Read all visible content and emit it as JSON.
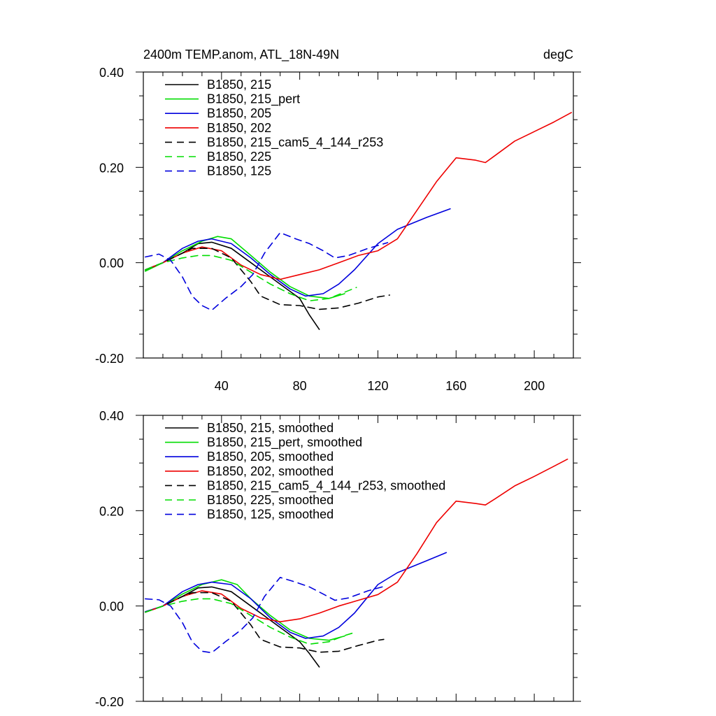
{
  "chart_data": [
    {
      "type": "line",
      "title": "2400m TEMP.anom, ATL_18N-49N",
      "units": "degC",
      "xlim": [
        0,
        220
      ],
      "ylim": [
        -0.2,
        0.4
      ],
      "xticks": [
        40,
        80,
        120,
        160,
        200
      ],
      "xtick_labels": [
        "40",
        "80",
        "120",
        "160",
        "200"
      ],
      "yticks": [
        -0.2,
        0.0,
        0.2,
        0.4
      ],
      "ytick_labels": [
        "-0.20",
        "0.00",
        "0.20",
        "0.40"
      ],
      "legend_placement": "top-left",
      "series": [
        {
          "name": "B1850, 215",
          "color": "#000000",
          "dash": "solid",
          "x": [
            1,
            10,
            20,
            28,
            35,
            45,
            55,
            65,
            75,
            80,
            85,
            90
          ],
          "y": [
            -0.015,
            0.0,
            0.02,
            0.04,
            0.043,
            0.03,
            0.0,
            -0.03,
            -0.06,
            -0.075,
            -0.11,
            -0.14
          ]
        },
        {
          "name": "B1850, 215_pert",
          "color": "#00dd00",
          "dash": "solid",
          "x": [
            1,
            10,
            20,
            30,
            38,
            45,
            55,
            65,
            75,
            85,
            95,
            103
          ],
          "y": [
            -0.018,
            0.0,
            0.025,
            0.045,
            0.055,
            0.05,
            0.015,
            -0.02,
            -0.05,
            -0.07,
            -0.075,
            -0.065
          ]
        },
        {
          "name": "B1850, 205",
          "color": "#0000dd",
          "dash": "solid",
          "x": [
            1,
            10,
            20,
            28,
            35,
            45,
            55,
            65,
            75,
            83,
            92,
            100,
            108,
            120,
            130,
            145,
            157
          ],
          "y": [
            -0.015,
            0.0,
            0.03,
            0.045,
            0.05,
            0.04,
            0.01,
            -0.025,
            -0.055,
            -0.07,
            -0.065,
            -0.045,
            -0.015,
            0.04,
            0.07,
            0.095,
            0.113
          ]
        },
        {
          "name": "B1850, 202",
          "color": "#ee0000",
          "dash": "solid",
          "x": [
            1,
            10,
            20,
            30,
            40,
            50,
            60,
            70,
            80,
            90,
            100,
            110,
            120,
            130,
            140,
            150,
            160,
            170,
            175,
            180,
            190,
            200,
            210,
            219
          ],
          "y": [
            -0.015,
            0.0,
            0.02,
            0.033,
            0.025,
            -0.005,
            -0.025,
            -0.035,
            -0.025,
            -0.015,
            0.0,
            0.015,
            0.025,
            0.05,
            0.11,
            0.17,
            0.22,
            0.215,
            0.21,
            0.225,
            0.255,
            0.275,
            0.295,
            0.315
          ]
        },
        {
          "name": "B1850, 215_cam5_4_144_r253",
          "color": "#000000",
          "dash": "dashed",
          "x": [
            1,
            10,
            20,
            25,
            30,
            35,
            45,
            55,
            60,
            70,
            80,
            90,
            100,
            110,
            120,
            126
          ],
          "y": [
            -0.015,
            0.0,
            0.02,
            0.03,
            0.03,
            0.03,
            0.01,
            -0.04,
            -0.07,
            -0.088,
            -0.09,
            -0.098,
            -0.095,
            -0.085,
            -0.072,
            -0.068
          ]
        },
        {
          "name": "B1850, 225",
          "color": "#00dd00",
          "dash": "dashed",
          "x": [
            1,
            10,
            20,
            28,
            35,
            45,
            55,
            65,
            75,
            85,
            95,
            103,
            109
          ],
          "y": [
            -0.015,
            0.0,
            0.01,
            0.015,
            0.015,
            0.005,
            -0.02,
            -0.045,
            -0.065,
            -0.08,
            -0.075,
            -0.062,
            -0.052
          ]
        },
        {
          "name": "B1850, 125",
          "color": "#0000dd",
          "dash": "dashed",
          "x": [
            1,
            8,
            14,
            20,
            25,
            30,
            35,
            42,
            50,
            56,
            62,
            70,
            78,
            85,
            92,
            98,
            105,
            115,
            125
          ],
          "y": [
            0.012,
            0.018,
            0.005,
            -0.03,
            -0.07,
            -0.09,
            -0.1,
            -0.075,
            -0.05,
            -0.025,
            0.02,
            0.063,
            0.05,
            0.04,
            0.025,
            0.01,
            0.015,
            0.03,
            0.042
          ]
        }
      ]
    },
    {
      "type": "line",
      "title": "",
      "units": "",
      "xlim": [
        0,
        220
      ],
      "ylim": [
        -0.2,
        0.4
      ],
      "xticks": [
        40,
        80,
        120,
        160,
        200
      ],
      "xtick_labels": [
        "",
        "",
        "",
        "",
        ""
      ],
      "yticks": [
        -0.2,
        0.0,
        0.2,
        0.4
      ],
      "ytick_labels": [
        "-0.20",
        "0.00",
        "0.20",
        "0.40"
      ],
      "legend_placement": "top-left",
      "series": [
        {
          "name": "B1850, 215, smoothed",
          "color": "#000000",
          "dash": "solid",
          "x": [
            1,
            10,
            20,
            28,
            35,
            45,
            55,
            65,
            75,
            80,
            85,
            90
          ],
          "y": [
            -0.013,
            0.0,
            0.02,
            0.038,
            0.04,
            0.03,
            0.0,
            -0.03,
            -0.06,
            -0.075,
            -0.1,
            -0.128
          ]
        },
        {
          "name": "B1850, 215_pert, smoothed",
          "color": "#00dd00",
          "dash": "solid",
          "x": [
            1,
            10,
            20,
            30,
            40,
            48,
            55,
            65,
            75,
            85,
            95,
            103
          ],
          "y": [
            -0.013,
            0.0,
            0.025,
            0.045,
            0.055,
            0.045,
            0.015,
            -0.02,
            -0.05,
            -0.068,
            -0.072,
            -0.063
          ]
        },
        {
          "name": "B1850, 205, smoothed",
          "color": "#0000dd",
          "dash": "solid",
          "x": [
            1,
            10,
            20,
            28,
            35,
            45,
            55,
            65,
            75,
            83,
            92,
            100,
            108,
            120,
            130,
            145,
            155
          ],
          "y": [
            -0.012,
            0.0,
            0.03,
            0.045,
            0.05,
            0.045,
            0.015,
            -0.025,
            -0.055,
            -0.068,
            -0.063,
            -0.045,
            -0.015,
            0.045,
            0.07,
            0.095,
            0.112
          ]
        },
        {
          "name": "B1850, 202, smoothed",
          "color": "#ee0000",
          "dash": "solid",
          "x": [
            1,
            10,
            20,
            30,
            40,
            50,
            60,
            70,
            80,
            90,
            100,
            110,
            120,
            130,
            140,
            150,
            160,
            170,
            175,
            180,
            190,
            200,
            210,
            217
          ],
          "y": [
            -0.013,
            0.0,
            0.02,
            0.032,
            0.025,
            -0.005,
            -0.025,
            -0.033,
            -0.027,
            -0.015,
            0.0,
            0.012,
            0.024,
            0.05,
            0.11,
            0.175,
            0.22,
            0.215,
            0.212,
            0.225,
            0.252,
            0.272,
            0.293,
            0.308
          ]
        },
        {
          "name": "B1850, 215_cam5_4_144_r253, smoothed",
          "color": "#000000",
          "dash": "dashed",
          "x": [
            1,
            10,
            20,
            25,
            30,
            35,
            45,
            55,
            60,
            70,
            80,
            90,
            100,
            110,
            120,
            123
          ],
          "y": [
            -0.013,
            0.0,
            0.02,
            0.028,
            0.028,
            0.028,
            0.01,
            -0.04,
            -0.07,
            -0.086,
            -0.088,
            -0.097,
            -0.095,
            -0.083,
            -0.072,
            -0.07
          ]
        },
        {
          "name": "B1850, 225, smoothed",
          "color": "#00dd00",
          "dash": "dashed",
          "x": [
            1,
            10,
            20,
            28,
            35,
            45,
            55,
            65,
            75,
            85,
            95,
            103,
            107
          ],
          "y": [
            -0.013,
            0.0,
            0.01,
            0.015,
            0.015,
            0.005,
            -0.02,
            -0.045,
            -0.065,
            -0.08,
            -0.075,
            -0.062,
            -0.057
          ]
        },
        {
          "name": "B1850, 125, smoothed",
          "color": "#0000dd",
          "dash": "dashed",
          "x": [
            1,
            8,
            14,
            20,
            25,
            30,
            35,
            42,
            50,
            56,
            62,
            70,
            78,
            85,
            92,
            98,
            105,
            115,
            124
          ],
          "y": [
            0.015,
            0.013,
            0.0,
            -0.035,
            -0.075,
            -0.095,
            -0.098,
            -0.075,
            -0.05,
            -0.025,
            0.02,
            0.06,
            0.05,
            0.04,
            0.025,
            0.012,
            0.017,
            0.032,
            0.042
          ]
        }
      ]
    }
  ]
}
